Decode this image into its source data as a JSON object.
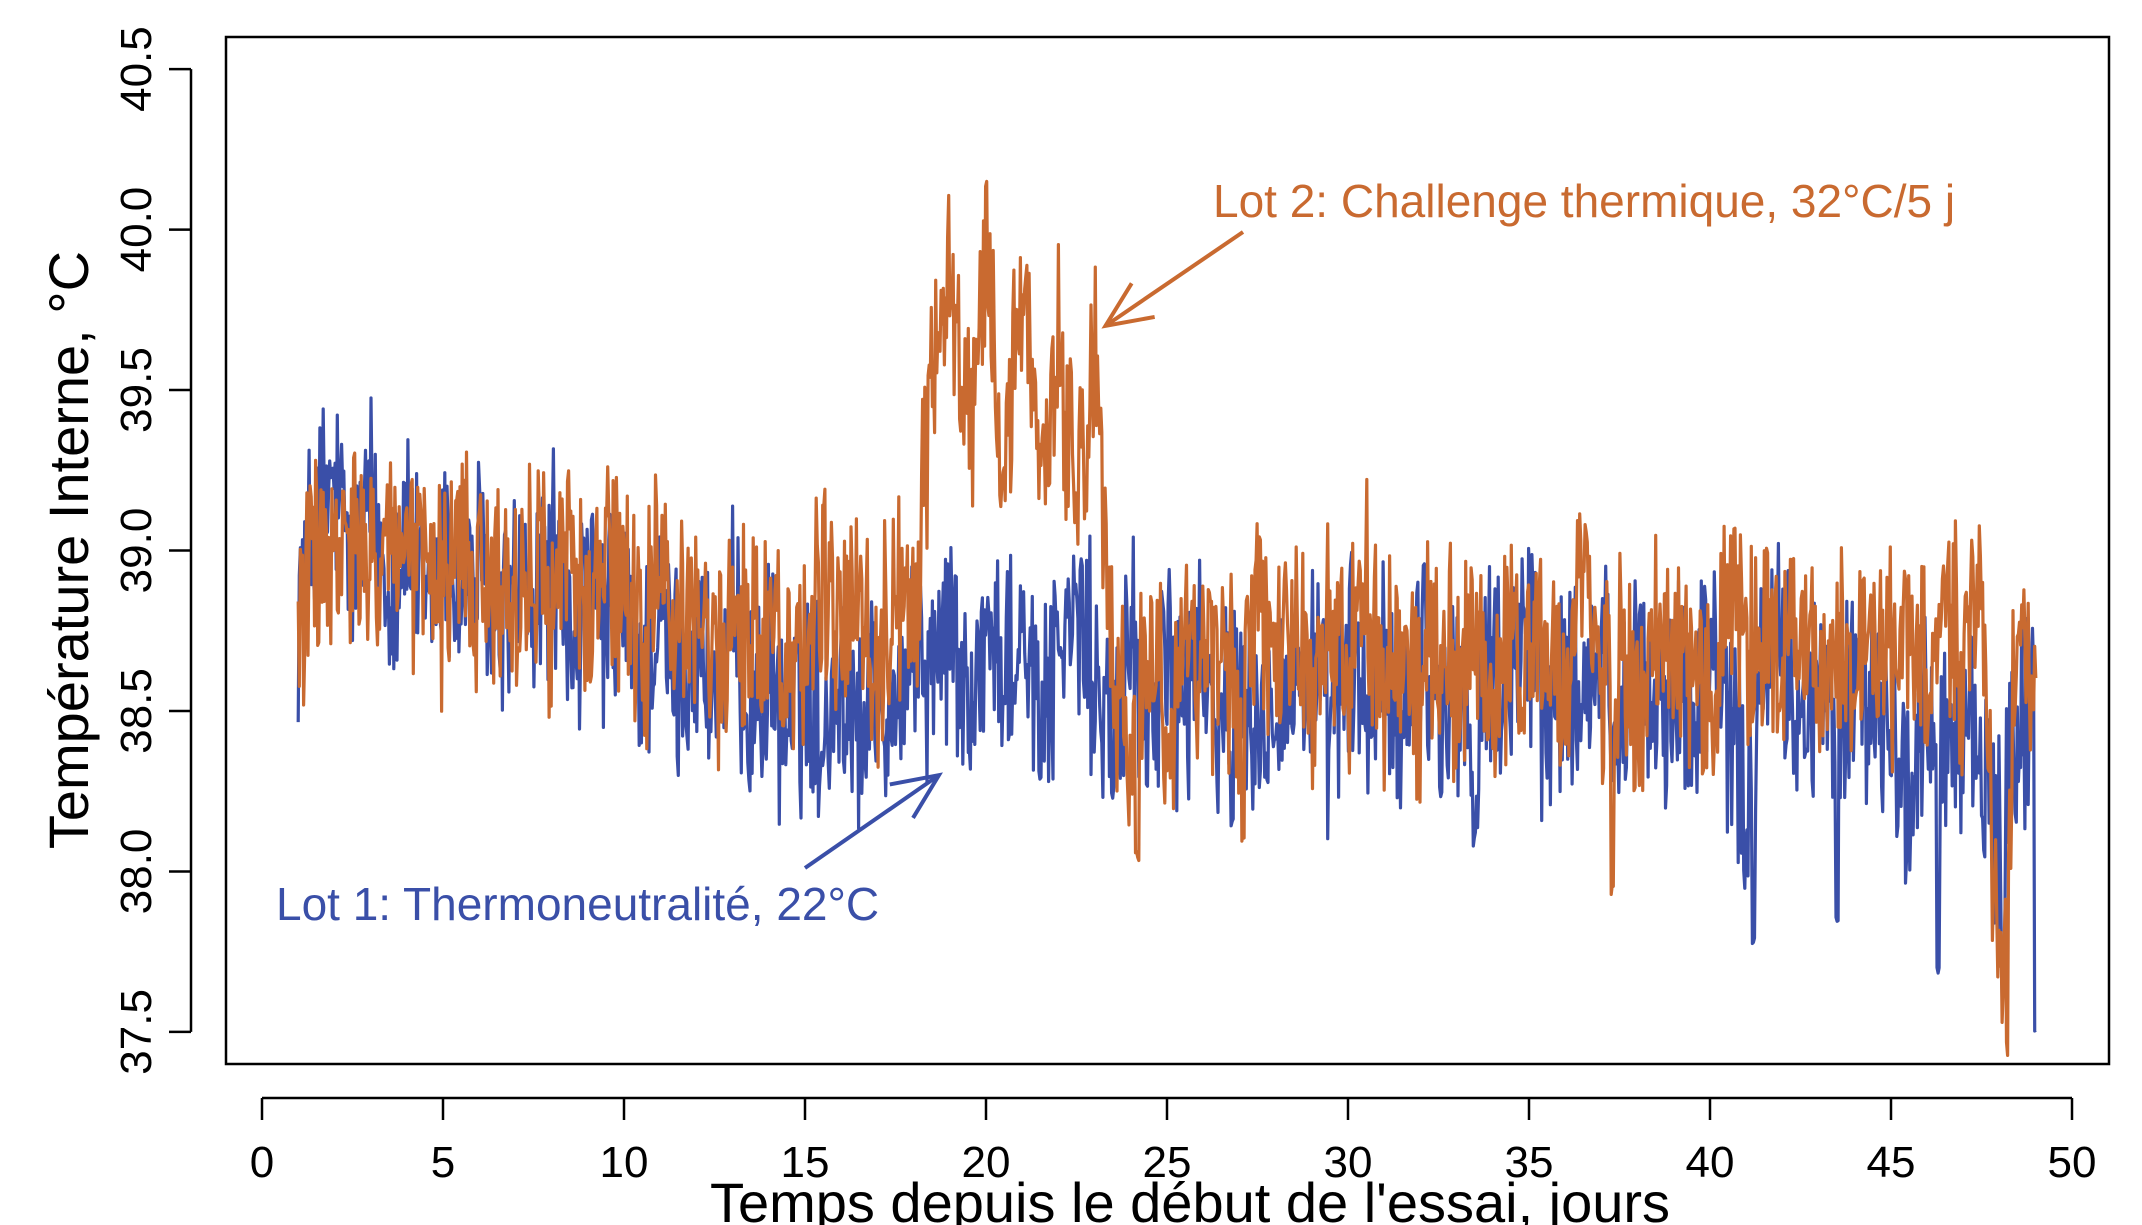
{
  "chart_data": {
    "type": "line",
    "title": "",
    "xlabel": "Temps depuis le début de l'essai, jours",
    "ylabel": "Température Interne, °C",
    "xlim": [
      0,
      50
    ],
    "ylim": [
      37.4,
      40.6
    ],
    "x_ticks": [
      0,
      5,
      10,
      15,
      20,
      25,
      30,
      35,
      40,
      45,
      50
    ],
    "y_ticks": [
      37.5,
      38.0,
      38.5,
      39.0,
      39.5,
      40.0,
      40.5
    ],
    "x_tick_labels": [
      "0",
      "5",
      "10",
      "15",
      "20",
      "25",
      "30",
      "35",
      "40",
      "45",
      "50"
    ],
    "y_tick_labels": [
      "37.5",
      "38.0",
      "38.5",
      "39.0",
      "39.5",
      "40.0",
      "40.5"
    ],
    "grid": false,
    "legend": "none",
    "series": [
      {
        "name": "Lot 1: Thermoneutralité, 22°C",
        "color": "#3a4fa8",
        "x": [
          1,
          1.5,
          2,
          2.5,
          3,
          3.5,
          4,
          4.5,
          5,
          5.5,
          6,
          6.5,
          7,
          7.5,
          8,
          8.5,
          9,
          9.5,
          10,
          10.5,
          11,
          11.5,
          12,
          12.5,
          13,
          13.5,
          14,
          14.5,
          15,
          15.5,
          16,
          16.5,
          17,
          17.5,
          18,
          18.5,
          19,
          19.5,
          20,
          20.5,
          21,
          21.5,
          22,
          22.5,
          23,
          23.5,
          24,
          24.5,
          25,
          25.5,
          26,
          26.5,
          27,
          27.5,
          28,
          28.5,
          29,
          29.5,
          30,
          30.5,
          31,
          31.5,
          32,
          32.5,
          33,
          33.5,
          34,
          34.5,
          35,
          35.5,
          36,
          36.5,
          37,
          37.5,
          38,
          38.5,
          39,
          39.5,
          40,
          40.5,
          41,
          41.5,
          42,
          42.5,
          43,
          43.5,
          44,
          44.5,
          45,
          45.5,
          46,
          46.5,
          47,
          47.5,
          48,
          48.5,
          49
        ],
        "values": [
          38.85,
          39.1,
          39.2,
          38.95,
          39.15,
          38.9,
          39.05,
          38.8,
          39.0,
          38.85,
          38.95,
          38.75,
          38.9,
          38.8,
          39.0,
          38.7,
          38.85,
          38.75,
          38.8,
          38.65,
          38.75,
          38.6,
          38.7,
          38.55,
          38.75,
          38.5,
          38.6,
          38.45,
          38.55,
          38.5,
          38.6,
          38.45,
          38.65,
          38.55,
          38.7,
          38.6,
          38.8,
          38.5,
          38.75,
          38.6,
          38.8,
          38.55,
          38.7,
          38.8,
          38.6,
          38.45,
          38.7,
          38.5,
          38.6,
          38.55,
          38.65,
          38.5,
          38.7,
          38.45,
          38.6,
          38.55,
          38.65,
          38.4,
          38.7,
          38.5,
          38.6,
          38.45,
          38.75,
          38.5,
          38.6,
          38.35,
          38.7,
          38.55,
          38.8,
          38.45,
          38.6,
          38.5,
          38.65,
          38.4,
          38.7,
          38.55,
          38.6,
          38.45,
          38.75,
          38.5,
          38.3,
          38.6,
          38.7,
          38.45,
          38.6,
          38.35,
          38.65,
          38.5,
          38.45,
          38.2,
          38.55,
          38.4,
          38.5,
          38.3,
          38.15,
          38.45,
          38.5
        ],
        "dips": [
          [
            15.5,
            38.35
          ],
          [
            21.5,
            38.3
          ],
          [
            23.5,
            38.25
          ],
          [
            26.8,
            38.15
          ],
          [
            33.5,
            38.1
          ],
          [
            41.2,
            37.8
          ],
          [
            43.5,
            37.85
          ],
          [
            46.3,
            37.7
          ],
          [
            48.1,
            37.6
          ],
          [
            49.0,
            37.5
          ]
        ]
      },
      {
        "name": "Lot 2: Challenge thermique, 32°C/5 j",
        "color": "#c96a30",
        "x": [
          1,
          1.5,
          2,
          2.5,
          3,
          3.5,
          4,
          4.5,
          5,
          5.5,
          6,
          6.5,
          7,
          7.5,
          8,
          8.5,
          9,
          9.5,
          10,
          10.5,
          11,
          11.5,
          12,
          12.5,
          13,
          13.5,
          14,
          14.5,
          15,
          15.5,
          16,
          16.5,
          17,
          17.5,
          18,
          18.5,
          19,
          19.5,
          20,
          20.5,
          21,
          21.5,
          22,
          22.5,
          23,
          23.5,
          24,
          24.5,
          25,
          25.5,
          26,
          26.5,
          27,
          27.5,
          28,
          28.5,
          29,
          29.5,
          30,
          30.5,
          31,
          31.5,
          32,
          32.5,
          33,
          33.5,
          34,
          34.5,
          35,
          35.5,
          36,
          36.5,
          37,
          37.5,
          38,
          38.5,
          39,
          39.5,
          40,
          40.5,
          41,
          41.5,
          42,
          42.5,
          43,
          43.5,
          44,
          44.5,
          45,
          45.5,
          46,
          46.5,
          47,
          47.5,
          48,
          48.5,
          49
        ],
        "values": [
          38.8,
          39.0,
          38.9,
          39.05,
          38.85,
          39.1,
          38.9,
          39.0,
          38.8,
          39.05,
          38.85,
          38.95,
          38.8,
          39.0,
          38.85,
          39.05,
          38.75,
          38.95,
          38.85,
          38.7,
          38.9,
          38.75,
          38.85,
          38.65,
          38.8,
          38.7,
          38.85,
          38.6,
          38.75,
          38.9,
          38.7,
          38.85,
          38.65,
          38.9,
          38.7,
          39.6,
          39.9,
          39.3,
          40.05,
          39.2,
          39.85,
          39.1,
          39.7,
          39.2,
          39.6,
          38.6,
          38.3,
          38.75,
          38.5,
          38.7,
          38.6,
          38.75,
          38.55,
          38.8,
          38.65,
          38.75,
          38.6,
          38.8,
          38.65,
          38.85,
          38.6,
          38.7,
          38.55,
          38.8,
          38.6,
          38.75,
          38.5,
          38.8,
          38.6,
          38.7,
          38.55,
          38.85,
          38.6,
          38.75,
          38.5,
          38.8,
          38.6,
          38.7,
          38.55,
          38.85,
          38.65,
          38.75,
          38.6,
          38.8,
          38.55,
          38.75,
          38.6,
          38.85,
          38.65,
          38.7,
          38.55,
          38.9,
          38.6,
          38.95,
          37.5,
          38.8,
          38.6
        ],
        "dips": [
          [
            24.2,
            38.05
          ],
          [
            27.1,
            38.1
          ],
          [
            37.3,
            37.95
          ],
          [
            48.2,
            37.45
          ]
        ]
      }
    ],
    "annotations": [
      {
        "text": "Lot 1: Thermoneutralité, 22°C",
        "color": "#3a4fa8",
        "arrow_to": [
          18.7,
          38.3
        ]
      },
      {
        "text": "Lot 2: Challenge thermique, 32°C/5 j",
        "color": "#c96a30",
        "arrow_to": [
          23.3,
          39.7
        ]
      }
    ]
  }
}
